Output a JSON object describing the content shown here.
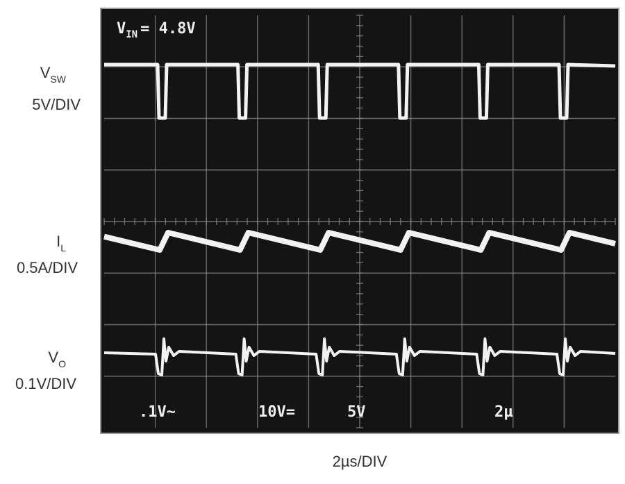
{
  "vin_label": {
    "symbol": "V",
    "subscript": "IN",
    "value": "= 4.8V"
  },
  "channels": [
    {
      "symbol": "V",
      "subscript": "SW",
      "scale": "5V/DIV"
    },
    {
      "symbol": "I",
      "subscript": "L",
      "scale": "0.5A/DIV"
    },
    {
      "symbol": "V",
      "subscript": "O",
      "scale": "0.1V/DIV"
    }
  ],
  "readouts": [
    ".1V~",
    "10V=",
    "5V",
    "2µ"
  ],
  "time_scale": "2µs/DIV"
}
